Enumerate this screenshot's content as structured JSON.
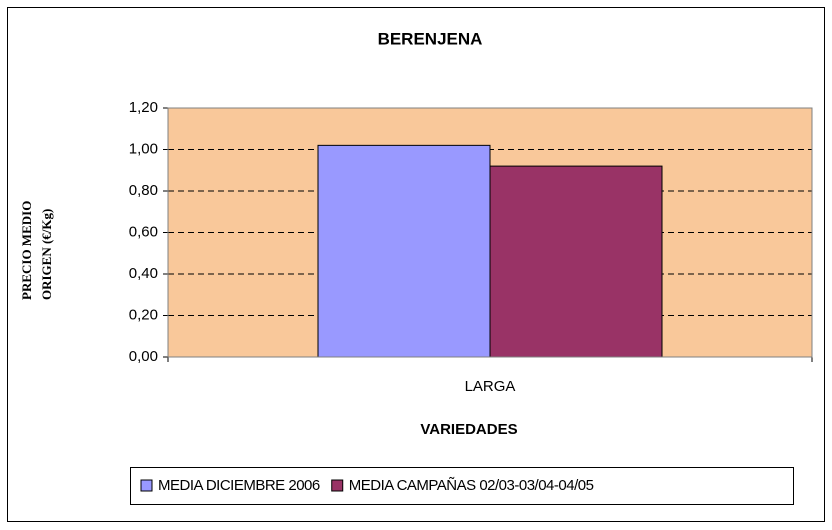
{
  "chart_data": {
    "type": "bar",
    "title": "BERENJENA",
    "y_axis_label": [
      "PRECIO MEDIO",
      "ORIGEN (€/Kg)"
    ],
    "x_axis_label": "VARIEDADES",
    "categories": [
      "LARGA"
    ],
    "series": [
      {
        "name": "MEDIA DICIEMBRE 2006",
        "color": "#9999ff",
        "values": [
          1.02
        ]
      },
      {
        "name": "MEDIA CAMPAÑAS 02/03-03/04-04/05",
        "color": "#993366",
        "values": [
          0.92
        ]
      }
    ],
    "ylim": [
      0,
      1.2
    ],
    "yticks": [
      {
        "value": 0,
        "label": "0,00"
      },
      {
        "value": 0.2,
        "label": "0,20"
      },
      {
        "value": 0.4,
        "label": "0,40"
      },
      {
        "value": 0.6,
        "label": "0,60"
      },
      {
        "value": 0.8,
        "label": "0,80"
      },
      {
        "value": 1.0,
        "label": "1,00"
      },
      {
        "value": 1.2,
        "label": "1,20"
      }
    ],
    "grid": true,
    "legend": "bottom",
    "plot_background": "#f9c89a"
  }
}
